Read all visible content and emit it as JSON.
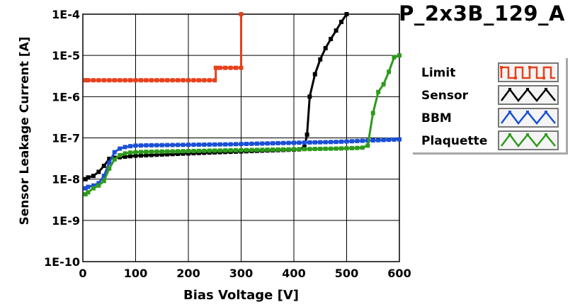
{
  "chart_data": {
    "type": "line",
    "title": "P_2x3B_129_A",
    "xlabel": "Bias Voltage [V]",
    "ylabel": "Sensor Leakage Current [A]",
    "xlim": [
      0,
      600
    ],
    "ylim": [
      1e-10,
      0.0001
    ],
    "yscale": "log",
    "grid": true,
    "legend_position": "right",
    "x_ticks": [
      0,
      100,
      200,
      300,
      400,
      500,
      600
    ],
    "y_ticks": [
      1e-10,
      1e-09,
      1e-08,
      1e-07,
      1e-06,
      1e-05,
      0.0001
    ],
    "x_tick_labels": [
      "0",
      "100",
      "200",
      "300",
      "400",
      "500",
      "600"
    ],
    "y_tick_labels": [
      "1E-10",
      "1E-9",
      "1E-8",
      "1E-7",
      "1E-6",
      "1E-5",
      "1E-4"
    ],
    "series": [
      {
        "name": "Limit",
        "color": "#e8401c",
        "step": true,
        "x": [
          5,
          10,
          20,
          30,
          40,
          50,
          60,
          70,
          80,
          90,
          100,
          110,
          120,
          130,
          140,
          150,
          160,
          170,
          180,
          190,
          200,
          210,
          220,
          230,
          240,
          250,
          252,
          260,
          270,
          280,
          290,
          300,
          300
        ],
        "y": [
          2.5e-06,
          2.5e-06,
          2.5e-06,
          2.5e-06,
          2.5e-06,
          2.5e-06,
          2.5e-06,
          2.5e-06,
          2.5e-06,
          2.5e-06,
          2.5e-06,
          2.5e-06,
          2.5e-06,
          2.5e-06,
          2.5e-06,
          2.5e-06,
          2.5e-06,
          2.5e-06,
          2.5e-06,
          2.5e-06,
          2.5e-06,
          2.5e-06,
          2.5e-06,
          2.5e-06,
          2.5e-06,
          2.5e-06,
          5e-06,
          5e-06,
          5e-06,
          5e-06,
          5e-06,
          5e-06,
          0.0001
        ]
      },
      {
        "name": "Sensor",
        "color": "#000000",
        "x": [
          5,
          10,
          20,
          30,
          40,
          50,
          60,
          70,
          80,
          90,
          100,
          110,
          120,
          130,
          140,
          150,
          160,
          170,
          180,
          190,
          200,
          210,
          220,
          230,
          240,
          250,
          260,
          270,
          280,
          290,
          300,
          310,
          320,
          330,
          340,
          350,
          360,
          370,
          380,
          390,
          400,
          410,
          420,
          425,
          430,
          440,
          450,
          460,
          470,
          480,
          490,
          500
        ],
        "y": [
          1e-08,
          1.1e-08,
          1.2e-08,
          1.5e-08,
          2.1e-08,
          3.1e-08,
          3.3e-08,
          3.4e-08,
          3.5e-08,
          3.6e-08,
          3.7e-08,
          3.75e-08,
          3.8e-08,
          3.85e-08,
          3.9e-08,
          3.95e-08,
          4e-08,
          4.05e-08,
          4.1e-08,
          4.15e-08,
          4.2e-08,
          4.25e-08,
          4.3e-08,
          4.35e-08,
          4.4e-08,
          4.45e-08,
          4.5e-08,
          4.55e-08,
          4.6e-08,
          4.65e-08,
          4.7e-08,
          4.75e-08,
          4.8e-08,
          4.85e-08,
          4.9e-08,
          4.95e-08,
          5e-08,
          5.05e-08,
          5.1e-08,
          5.15e-08,
          5.2e-08,
          5.25e-08,
          6e-08,
          1.2e-07,
          1e-06,
          3.5e-06,
          8e-06,
          1.5e-05,
          2.5e-05,
          4e-05,
          6.5e-05,
          0.0001
        ]
      },
      {
        "name": "BBM",
        "color": "#1a4fd6",
        "x": [
          5,
          10,
          20,
          30,
          40,
          50,
          60,
          70,
          80,
          90,
          100,
          110,
          120,
          130,
          140,
          150,
          160,
          170,
          180,
          190,
          200,
          210,
          220,
          230,
          240,
          250,
          260,
          270,
          280,
          290,
          300,
          310,
          320,
          330,
          340,
          350,
          360,
          370,
          380,
          390,
          400,
          410,
          420,
          430,
          440,
          450,
          460,
          470,
          480,
          490,
          500,
          510,
          520,
          530,
          540,
          550,
          560,
          570,
          580,
          590,
          600
        ],
        "y": [
          6e-09,
          6.5e-09,
          7e-09,
          8e-09,
          1.2e-08,
          2.5e-08,
          4.5e-08,
          5.5e-08,
          6e-08,
          6.3e-08,
          6.5e-08,
          6.55e-08,
          6.6e-08,
          6.62e-08,
          6.65e-08,
          6.67e-08,
          6.7e-08,
          6.72e-08,
          6.75e-08,
          6.77e-08,
          6.8e-08,
          6.82e-08,
          6.85e-08,
          6.87e-08,
          6.9e-08,
          6.92e-08,
          6.95e-08,
          6.97e-08,
          7e-08,
          7.05e-08,
          7.1e-08,
          7.15e-08,
          7.2e-08,
          7.25e-08,
          7.3e-08,
          7.35e-08,
          7.4e-08,
          7.45e-08,
          7.5e-08,
          7.55e-08,
          7.6e-08,
          7.65e-08,
          7.7e-08,
          7.75e-08,
          7.8e-08,
          7.85e-08,
          7.9e-08,
          7.95e-08,
          8e-08,
          8.1e-08,
          8.2e-08,
          8.3e-08,
          8.4e-08,
          8.5e-08,
          8.6e-08,
          8.7e-08,
          8.8e-08,
          8.9e-08,
          9e-08,
          9.1e-08,
          9.2e-08
        ]
      },
      {
        "name": "Plaquette",
        "color": "#2e9a1c",
        "x": [
          5,
          10,
          20,
          30,
          40,
          50,
          60,
          70,
          80,
          90,
          100,
          110,
          120,
          130,
          140,
          150,
          160,
          170,
          180,
          190,
          200,
          210,
          220,
          230,
          240,
          250,
          260,
          270,
          280,
          290,
          300,
          310,
          320,
          330,
          340,
          350,
          360,
          370,
          380,
          390,
          400,
          410,
          420,
          430,
          440,
          450,
          460,
          470,
          480,
          490,
          500,
          510,
          520,
          530,
          540,
          550,
          560,
          570,
          580,
          590,
          600
        ],
        "y": [
          4.3e-09,
          4.8e-09,
          6e-09,
          7e-09,
          9e-09,
          1.8e-08,
          3e-08,
          3.8e-08,
          4.2e-08,
          4.4e-08,
          4.5e-08,
          4.55e-08,
          4.6e-08,
          4.62e-08,
          4.65e-08,
          4.67e-08,
          4.7e-08,
          4.72e-08,
          4.75e-08,
          4.77e-08,
          4.8e-08,
          4.82e-08,
          4.85e-08,
          4.87e-08,
          4.9e-08,
          4.92e-08,
          4.95e-08,
          4.97e-08,
          5e-08,
          5.02e-08,
          5.05e-08,
          5.07e-08,
          5.1e-08,
          5.12e-08,
          5.15e-08,
          5.17e-08,
          5.2e-08,
          5.22e-08,
          5.25e-08,
          5.27e-08,
          5.3e-08,
          5.32e-08,
          5.35e-08,
          5.37e-08,
          5.4e-08,
          5.42e-08,
          5.45e-08,
          5.47e-08,
          5.5e-08,
          5.55e-08,
          5.6e-08,
          5.65e-08,
          5.7e-08,
          5.8e-08,
          6.5e-08,
          4e-07,
          1.3e-06,
          2e-06,
          4e-06,
          9e-06,
          1e-05
        ]
      }
    ]
  }
}
